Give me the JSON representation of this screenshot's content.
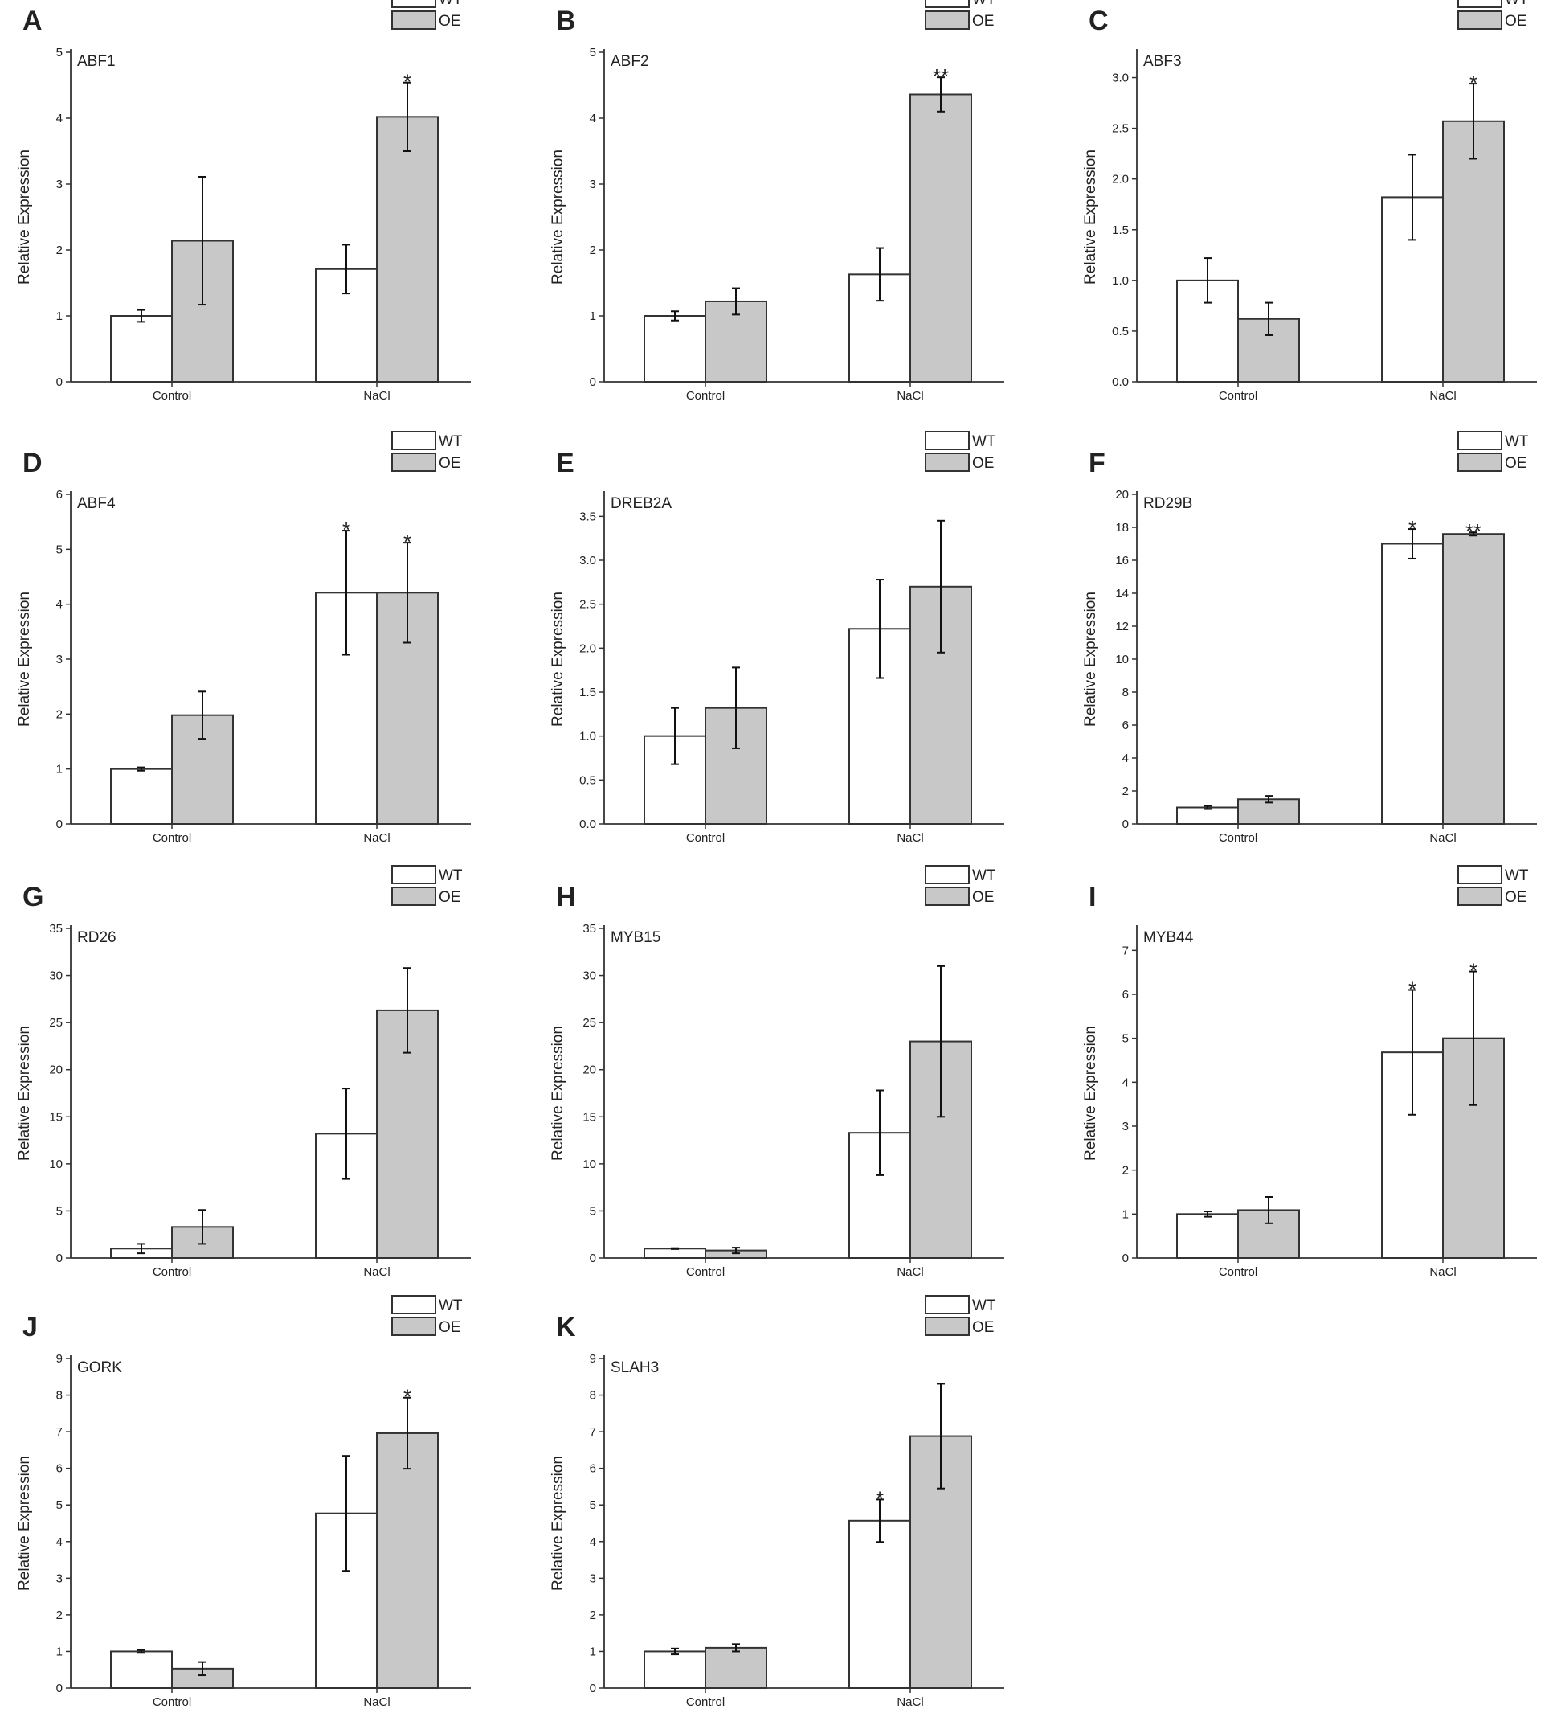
{
  "figure": {
    "legend": {
      "wt": "WT",
      "oe": "OE"
    },
    "colors": {
      "wt": "#ffffff",
      "oe": "#c8c8c8",
      "axis": "#333333"
    },
    "ylabel": "Relative Expression"
  },
  "chart_data": [
    {
      "label": "A",
      "gene": "ABF1",
      "type": "bar",
      "categories": [
        "Control",
        "NaCl"
      ],
      "ylim": [
        0,
        5
      ],
      "yticks": [
        "0",
        "1",
        "2",
        "3",
        "4",
        "5"
      ],
      "series": [
        {
          "name": "WT",
          "values": [
            1.0,
            1.71
          ],
          "errors": [
            0.09,
            0.37
          ],
          "sig": [
            "",
            ""
          ]
        },
        {
          "name": "OE",
          "values": [
            2.14,
            4.02
          ],
          "errors": [
            0.97,
            0.52
          ],
          "sig": [
            "",
            "*"
          ]
        }
      ]
    },
    {
      "label": "B",
      "gene": "ABF2",
      "type": "bar",
      "categories": [
        "Control",
        "NaCl"
      ],
      "ylim": [
        0,
        5
      ],
      "yticks": [
        "0",
        "1",
        "2",
        "3",
        "4",
        "5"
      ],
      "series": [
        {
          "name": "WT",
          "values": [
            1.0,
            1.63
          ],
          "errors": [
            0.07,
            0.4
          ],
          "sig": [
            "",
            ""
          ]
        },
        {
          "name": "OE",
          "values": [
            1.22,
            4.36
          ],
          "errors": [
            0.2,
            0.26
          ],
          "sig": [
            "",
            "**"
          ]
        }
      ]
    },
    {
      "label": "C",
      "gene": "ABF3",
      "type": "bar",
      "categories": [
        "Control",
        "NaCl"
      ],
      "ylim": [
        0,
        3.25
      ],
      "yticks": [
        "0.0",
        "0.5",
        "1.0",
        "1.5",
        "2.0",
        "2.5",
        "3.0"
      ],
      "series": [
        {
          "name": "WT",
          "values": [
            1.0,
            1.82
          ],
          "errors": [
            0.22,
            0.42
          ],
          "sig": [
            "",
            ""
          ]
        },
        {
          "name": "OE",
          "values": [
            0.62,
            2.57
          ],
          "errors": [
            0.16,
            0.37
          ],
          "sig": [
            "",
            "*"
          ]
        }
      ]
    },
    {
      "label": "D",
      "gene": "ABF4",
      "type": "bar",
      "categories": [
        "Control",
        "NaCl"
      ],
      "ylim": [
        0,
        6
      ],
      "yticks": [
        "0",
        "1",
        "2",
        "3",
        "4",
        "5",
        "6"
      ],
      "series": [
        {
          "name": "WT",
          "values": [
            1.0,
            4.21
          ],
          "errors": [
            0.03,
            1.13
          ],
          "sig": [
            "",
            "*"
          ]
        },
        {
          "name": "OE",
          "values": [
            1.98,
            4.21
          ],
          "errors": [
            0.43,
            0.91
          ],
          "sig": [
            "",
            "*"
          ]
        }
      ]
    },
    {
      "label": "E",
      "gene": "DREB2A",
      "type": "bar",
      "categories": [
        "Control",
        "NaCl"
      ],
      "ylim": [
        0,
        3.75
      ],
      "yticks": [
        "0.0",
        "0.5",
        "1.0",
        "1.5",
        "2.0",
        "2.5",
        "3.0",
        "3.5"
      ],
      "series": [
        {
          "name": "WT",
          "values": [
            1.0,
            2.22
          ],
          "errors": [
            0.32,
            0.56
          ],
          "sig": [
            "",
            ""
          ]
        },
        {
          "name": "OE",
          "values": [
            1.32,
            2.7
          ],
          "errors": [
            0.46,
            0.75
          ],
          "sig": [
            "",
            ""
          ]
        }
      ]
    },
    {
      "label": "F",
      "gene": "RD29B",
      "type": "bar",
      "categories": [
        "Control",
        "NaCl"
      ],
      "ylim": [
        0,
        20
      ],
      "yticks": [
        "0",
        "2",
        "4",
        "6",
        "8",
        "10",
        "12",
        "14",
        "16",
        "18",
        "20"
      ],
      "series": [
        {
          "name": "WT",
          "values": [
            1.0,
            17.0
          ],
          "errors": [
            0.1,
            0.9
          ],
          "sig": [
            "",
            "*"
          ]
        },
        {
          "name": "OE",
          "values": [
            1.5,
            17.6
          ],
          "errors": [
            0.2,
            0.1
          ],
          "sig": [
            "",
            "**"
          ]
        }
      ]
    },
    {
      "label": "G",
      "gene": "RD26",
      "type": "bar",
      "categories": [
        "Control",
        "NaCl"
      ],
      "ylim": [
        0,
        35
      ],
      "yticks": [
        "0",
        "5",
        "10",
        "15",
        "20",
        "25",
        "30",
        "35"
      ],
      "series": [
        {
          "name": "WT",
          "values": [
            1.0,
            13.2
          ],
          "errors": [
            0.5,
            4.8
          ],
          "sig": [
            "",
            ""
          ]
        },
        {
          "name": "OE",
          "values": [
            3.3,
            26.3
          ],
          "errors": [
            1.8,
            4.5
          ],
          "sig": [
            "",
            ""
          ]
        }
      ]
    },
    {
      "label": "H",
      "gene": "MYB15",
      "type": "bar",
      "categories": [
        "Control",
        "NaCl"
      ],
      "ylim": [
        0,
        35
      ],
      "yticks": [
        "0",
        "5",
        "10",
        "15",
        "20",
        "25",
        "30",
        "35"
      ],
      "series": [
        {
          "name": "WT",
          "values": [
            1.0,
            13.3
          ],
          "errors": [
            0.05,
            4.5
          ],
          "sig": [
            "",
            ""
          ]
        },
        {
          "name": "OE",
          "values": [
            0.8,
            23.0
          ],
          "errors": [
            0.3,
            8.0
          ],
          "sig": [
            "",
            ""
          ]
        }
      ]
    },
    {
      "label": "I",
      "gene": "MYB44",
      "type": "bar",
      "categories": [
        "Control",
        "NaCl"
      ],
      "ylim": [
        0,
        7.5
      ],
      "yticks": [
        "0",
        "1",
        "2",
        "3",
        "4",
        "5",
        "6",
        "7"
      ],
      "series": [
        {
          "name": "WT",
          "values": [
            1.0,
            4.68
          ],
          "errors": [
            0.06,
            1.42
          ],
          "sig": [
            "",
            "*"
          ]
        },
        {
          "name": "OE",
          "values": [
            1.09,
            5.0
          ],
          "errors": [
            0.3,
            1.52
          ],
          "sig": [
            "",
            "*"
          ]
        }
      ]
    },
    {
      "label": "J",
      "gene": "GORK",
      "type": "bar",
      "categories": [
        "Control",
        "NaCl"
      ],
      "ylim": [
        0,
        9
      ],
      "yticks": [
        "0",
        "1",
        "2",
        "3",
        "4",
        "5",
        "6",
        "7",
        "8",
        "9"
      ],
      "series": [
        {
          "name": "WT",
          "values": [
            1.0,
            4.77
          ],
          "errors": [
            0.04,
            1.57
          ],
          "sig": [
            "",
            ""
          ]
        },
        {
          "name": "OE",
          "values": [
            0.53,
            6.96
          ],
          "errors": [
            0.18,
            0.97
          ],
          "sig": [
            "",
            "*"
          ]
        }
      ]
    },
    {
      "label": "K",
      "gene": "SLAH3",
      "type": "bar",
      "categories": [
        "Control",
        "NaCl"
      ],
      "ylim": [
        0,
        9
      ],
      "yticks": [
        "0",
        "1",
        "2",
        "3",
        "4",
        "5",
        "6",
        "7",
        "8",
        "9"
      ],
      "series": [
        {
          "name": "WT",
          "values": [
            1.0,
            4.57
          ],
          "errors": [
            0.08,
            0.58
          ],
          "sig": [
            "",
            "*"
          ]
        },
        {
          "name": "OE",
          "values": [
            1.1,
            6.88
          ],
          "errors": [
            0.1,
            1.43
          ],
          "sig": [
            "",
            ""
          ]
        }
      ]
    }
  ]
}
